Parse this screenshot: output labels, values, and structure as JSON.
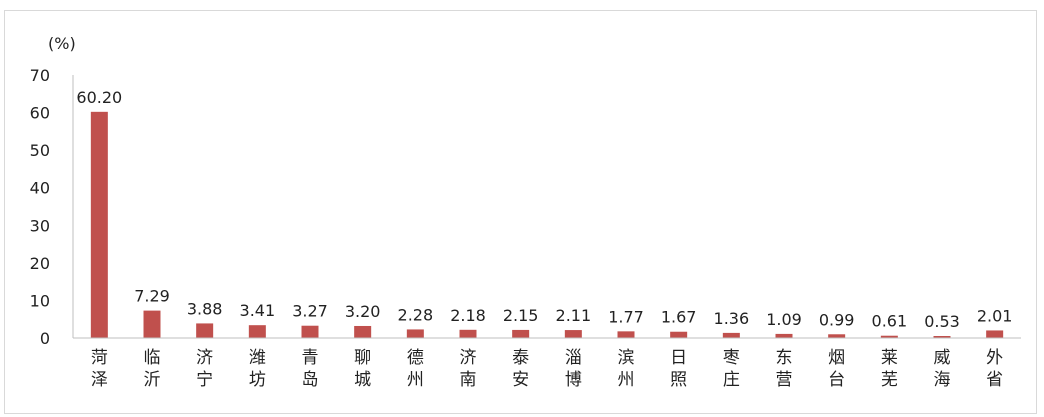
{
  "chart_data": {
    "type": "bar",
    "title": "",
    "xlabel": "",
    "ylabel": "(%)",
    "ylim": [
      0,
      70
    ],
    "yticks": [
      0,
      10,
      20,
      30,
      40,
      50,
      60,
      70
    ],
    "grid": false,
    "legend": "none",
    "bar_color": "#c0504d",
    "categories": [
      "菏泽",
      "临沂",
      "济宁",
      "潍坊",
      "青岛",
      "聊城",
      "德州",
      "济南",
      "泰安",
      "淄博",
      "滨州",
      "日照",
      "枣庄",
      "东营",
      "烟台",
      "莱芜",
      "威海",
      "外省"
    ],
    "values": [
      60.2,
      7.29,
      3.88,
      3.41,
      3.27,
      3.2,
      2.28,
      2.18,
      2.15,
      2.11,
      1.77,
      1.67,
      1.36,
      1.09,
      0.99,
      0.61,
      0.53,
      2.01
    ],
    "value_labels": [
      "60.20",
      "7.29",
      "3.88",
      "3.41",
      "3.27",
      "3.20",
      "2.28",
      "2.18",
      "2.15",
      "2.11",
      "1.77",
      "1.67",
      "1.36",
      "1.09",
      "0.99",
      "0.61",
      "0.53",
      "2.01"
    ]
  }
}
